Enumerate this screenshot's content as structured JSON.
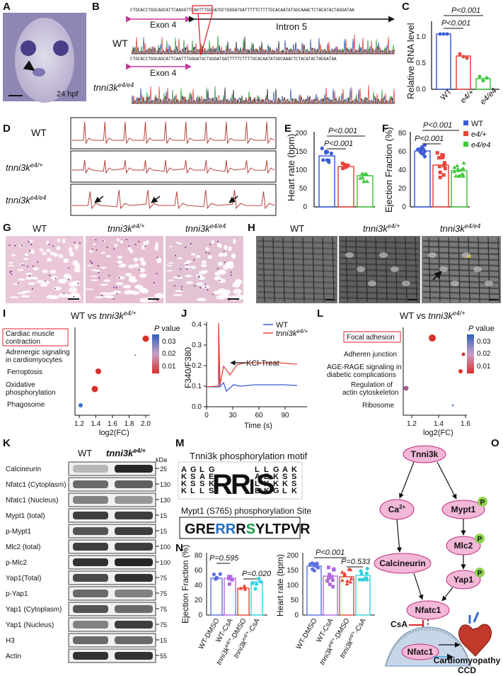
{
  "panels": {
    "A": {
      "letter": "A",
      "stage": "24 hpf"
    },
    "B": {
      "letter": "B",
      "wt_label": "WT",
      "mut_label_main": "tnni3k",
      "mut_label_sup": "e4/e4",
      "exon_label": "Exon 4",
      "intron_label": "Intron 5",
      "seq_wt": "CTGCACCTGGCAGCATTCAAGGTTCAGTTTGGGATGCTGGGATGATTTTTCTTTTGCACAATATGGCAAACTCTACATACTAGGATAA",
      "seq_mut": "CTGCACCTGGCAGCATTCAATTTGGGATGCTGGGATGATTTTTCTTTTGCACAATATGGCAAACTCTACATACTAGGATAA"
    },
    "C": {
      "letter": "C",
      "ylabel": "Relative RNA level",
      "yticks": [
        "0.0",
        "0.5",
        "1.0"
      ],
      "pvals": [
        "P<0.001",
        "P<0.001"
      ]
    },
    "D": {
      "letter": "D",
      "rows": [
        {
          "main": "WT",
          "sup": ""
        },
        {
          "main": "tnni3k",
          "sup": "e4/+"
        },
        {
          "main": "tnni3k",
          "sup": "e4/e4"
        }
      ]
    },
    "E": {
      "letter": "E",
      "ylabel": "Heart rate (bpm)",
      "yticks": [
        "0",
        "50",
        "100",
        "150",
        "200"
      ],
      "pvals": [
        "P<0.001",
        "P<0.001"
      ]
    },
    "F": {
      "letter": "F",
      "ylabel": "Ejection Fraction (%)",
      "yticks": [
        "0",
        "20",
        "40",
        "60",
        "80"
      ],
      "pvals": [
        "P<0.001",
        "P<0.001"
      ],
      "legend": [
        "WT",
        "e4/+",
        "e4/e4"
      ]
    },
    "G": {
      "letter": "G",
      "titles": [
        {
          "main": "WT",
          "sup": ""
        },
        {
          "main": "tnni3k",
          "sup": "e4/+"
        },
        {
          "main": "tnni3k",
          "sup": "e4/e4"
        }
      ]
    },
    "H": {
      "letter": "H",
      "titles": [
        {
          "main": "WT",
          "sup": ""
        },
        {
          "main": "tnni3k",
          "sup": "e4/+"
        },
        {
          "main": "tnni3k",
          "sup": "e4/e4"
        }
      ]
    },
    "I": {
      "letter": "I",
      "title_main": "WT vs ",
      "title_it": "tnni3k",
      "title_sup": "e4/+",
      "terms": [
        "Cardiac muscle contraction",
        "Adrenergic signaling in cardiomyocytes",
        "Ferroptosis",
        "Oxidative phosphorylation",
        "Phagosome"
      ],
      "xticks": [
        "1.2",
        "1.4",
        "1.6",
        "1.8",
        "2.0"
      ],
      "xlabel": "log2(FC)",
      "cbar_title": "P value",
      "cbar_ticks": [
        "0.03",
        "0.02",
        "0.01"
      ]
    },
    "J": {
      "letter": "J",
      "ylabel": "F340/F380",
      "xlabel": "Time (s)",
      "xticks": [
        "0",
        "30",
        "60",
        "90"
      ],
      "yticks": [
        "0.0",
        "0.1",
        "0.2",
        "0.3",
        "0.4"
      ],
      "legend_wt": "WT",
      "legend_mut_main": "tnni3k",
      "legend_mut_sup": "e4/+",
      "annotation": "KCl-Treat"
    },
    "L": {
      "letter": "L",
      "title_main": "WT vs ",
      "title_it": "tnni3k",
      "title_sup": "e4/+",
      "terms": [
        "Focal adhesion",
        "Adheren junction",
        "AGE-RAGE signaling  in diabetic complications",
        "Regulation of actin cytoskeleton",
        "Ribosome"
      ],
      "xticks": [
        "1.2",
        "1.4",
        "1.6"
      ],
      "xlabel": "log2(FC)",
      "cbar_title": "P value",
      "cbar_ticks": [
        "0.03",
        "0.02",
        "0.01"
      ]
    },
    "K": {
      "letter": "K",
      "col_wt": "WT",
      "col_mut_main": "tnni3k",
      "col_mut_sup": "e4/+",
      "kda": "kDa",
      "rows": [
        {
          "label": "Calcineurin",
          "mw": "25"
        },
        {
          "label": "Nfatc1 (Cytoplasm)",
          "mw": "130"
        },
        {
          "label": "Nfatc1 (Nucleus)",
          "mw": "130"
        },
        {
          "label": "Mypt1 (total)",
          "mw": "15"
        },
        {
          "label": "p-Mypt1",
          "mw": "15"
        },
        {
          "label": "Mlc2 (total)",
          "mw": "100"
        },
        {
          "label": "p-Mlc2",
          "mw": "100"
        },
        {
          "label": "Yap1(Total)",
          "mw": "75"
        },
        {
          "label": "p-Yap1",
          "mw": "75"
        },
        {
          "label": "Yap1 (Cytoplasm)",
          "mw": "75"
        },
        {
          "label": "Yap1 (Nucleus)",
          "mw": "75"
        },
        {
          "label": "H3",
          "mw": "15"
        },
        {
          "label": "Actin",
          "mw": "55"
        }
      ]
    },
    "M": {
      "letter": "M",
      "title": "Tnni3k phosphorylation motif",
      "site_title": "Mypt1 (S765)  phosphorylation Site",
      "seq": [
        {
          "t": "GRE",
          "c": "#111"
        },
        {
          "t": "RR",
          "c": "#1f6fc2"
        },
        {
          "t": "R",
          "c": "#111"
        },
        {
          "t": "S",
          "c": "#1a9a4a"
        },
        {
          "t": "YLTPVR",
          "c": "#111"
        }
      ],
      "motif_letters": [
        "R",
        "R",
        "I",
        "S"
      ]
    },
    "N": {
      "letter": "N",
      "ef_ylabel": "Ejection Fraction (%)",
      "hr_ylabel": "Heart rate (bpm)",
      "ef_yticks": [
        "0",
        "20",
        "40",
        "60",
        "80"
      ],
      "hr_yticks": [
        "0",
        "50",
        "100",
        "150",
        "200"
      ],
      "ef_pvals": [
        "P=0.595",
        "P=0.020"
      ],
      "hr_pvals": [
        "P<0.001",
        "P=0.533"
      ],
      "groups": [
        "WT-DMSO",
        "WT-CsA",
        "tnni3ke4/+-DMSO",
        "tnni3ke4/+-CsA"
      ]
    },
    "O": {
      "letter": "O",
      "nodes": {
        "tnni3k": "Tnni3k",
        "ca": "Ca",
        "ca_sup": "2+",
        "mypt1": "Mypt1",
        "mlc2": "Mlc2",
        "yap1": "Yap1",
        "calcineurin": "Calcineurin",
        "nfatc1": "Nfatc1",
        "nfatc1_nuc": "Nfatc1",
        "csa": "CsA",
        "p": "P",
        "outcome1": "Cardiomyopathy",
        "outcome2": "CCD"
      }
    }
  },
  "colors": {
    "wt": "#3b5bd9",
    "het": "#e8443a",
    "hom": "#3ec93a",
    "node": "#f3b8d8",
    "node_stroke": "#c02a7a",
    "phos": "#8fd14f",
    "inhib": "#e0262c"
  }
}
